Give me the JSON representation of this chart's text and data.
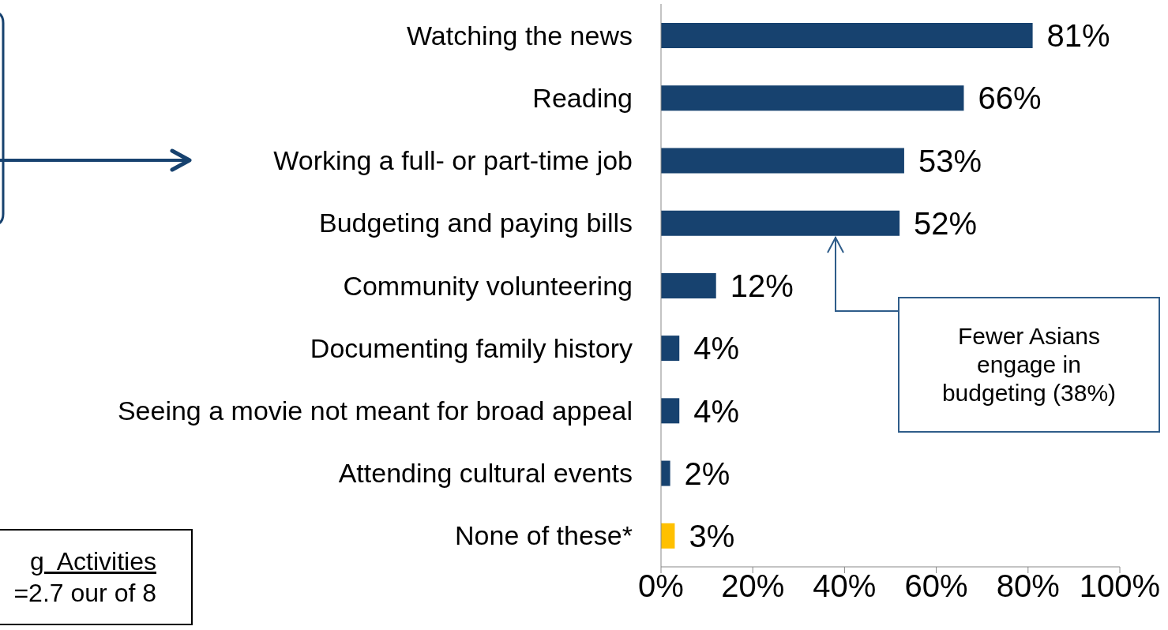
{
  "chart_data": {
    "type": "bar",
    "orientation": "horizontal",
    "categories": [
      "Watching the news",
      "Reading",
      "Working a full- or part-time job",
      "Budgeting and paying bills",
      "Community volunteering",
      "Documenting family history",
      "Seeing a movie not meant for broad appeal",
      "Attending cultural events",
      "None of these*"
    ],
    "values": [
      81,
      66,
      53,
      52,
      12,
      4,
      4,
      2,
      3
    ],
    "colors": [
      "#17426f",
      "#17426f",
      "#17426f",
      "#17426f",
      "#17426f",
      "#17426f",
      "#17426f",
      "#17426f",
      "#ffc000"
    ],
    "value_labels": [
      "81%",
      "66%",
      "53%",
      "52%",
      "12%",
      "4%",
      "4%",
      "2%",
      "3%"
    ],
    "xlim": [
      0,
      100
    ],
    "xticks": [
      {
        "value": 0,
        "label": "0%"
      },
      {
        "value": 20,
        "label": "20%"
      },
      {
        "value": 40,
        "label": "40%"
      },
      {
        "value": 60,
        "label": "60%"
      },
      {
        "value": 80,
        "label": "80%"
      },
      {
        "value": 100,
        "label": "100%"
      }
    ],
    "grid": false,
    "legend": false,
    "annotations": [
      "Fewer Asians engage in budgeting (38%)",
      "g  Activities",
      "=2.7 our of 8"
    ]
  }
}
